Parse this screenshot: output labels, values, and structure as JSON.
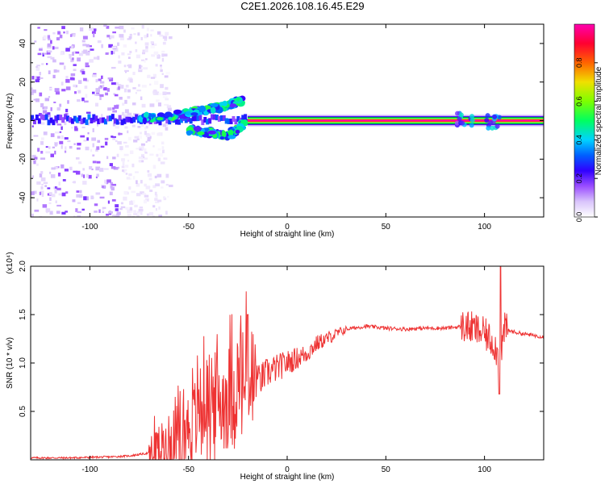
{
  "title": "C2E1.2026.108.16.45.E29",
  "chart_data": [
    {
      "type": "heatmap",
      "xlabel": "Height of straight line (km)",
      "ylabel": "Frequency (Hz)",
      "xlim": [
        -130,
        130
      ],
      "ylim": [
        -50,
        50
      ],
      "xticks": [
        -100,
        -50,
        0,
        50,
        100
      ],
      "yticks": [
        -40,
        -20,
        0,
        20,
        40
      ],
      "colorbar": {
        "label": "Normalized spectral amplitude",
        "range": [
          0,
          1
        ],
        "ticks": [
          "0.0",
          "0.2",
          "0.4",
          "0.6",
          "0.8"
        ],
        "colors": [
          "#ffffff",
          "#b78af5",
          "#7a14ff",
          "#0000ff",
          "#00c8ff",
          "#00ff00",
          "#c8ff00",
          "#ffaa00",
          "#ff0000",
          "#ff00aa"
        ]
      },
      "features": {
        "noise_region_x": [
          -130,
          -85
        ],
        "noise_amplitude": 0.15,
        "carrier_center_y": 0,
        "carrier_halfwidth_hz": 2,
        "carrier_strong_x": [
          -20,
          130
        ],
        "carrier_strong_amplitude": 1.0,
        "rising_branch": [
          [
            -75,
            1
          ],
          [
            -55,
            3
          ],
          [
            -40,
            6
          ],
          [
            -30,
            8
          ],
          [
            -22,
            11
          ]
        ],
        "falling_branch": [
          [
            -50,
            -5
          ],
          [
            -40,
            -6
          ],
          [
            -30,
            -8
          ],
          [
            -22,
            -2
          ]
        ],
        "disturbances_x": [
          90,
          105
        ]
      }
    },
    {
      "type": "line",
      "xlabel": "Height of straight line (km)",
      "ylabel": "SNR (10 * v/v)",
      "y_multiplier": "(x10⁴)",
      "xlim": [
        -130,
        130
      ],
      "ylim": [
        0,
        2.0
      ],
      "xticks": [
        -100,
        -50,
        0,
        50,
        100
      ],
      "yticks": [
        "0.5",
        "1.0",
        "1.5",
        "2.0"
      ],
      "color": "#ee3333",
      "x": [
        -130,
        -110,
        -90,
        -80,
        -70,
        -65,
        -60,
        -55,
        -50,
        -45,
        -40,
        -35,
        -30,
        -25,
        -20,
        -15,
        -10,
        -5,
        0,
        5,
        10,
        15,
        20,
        25,
        30,
        40,
        50,
        60,
        70,
        80,
        90,
        95,
        100,
        105,
        108,
        110,
        115,
        120,
        130
      ],
      "values": [
        0.02,
        0.02,
        0.03,
        0.04,
        0.07,
        0.12,
        0.18,
        0.25,
        0.35,
        0.5,
        0.65,
        0.6,
        0.65,
        0.8,
        0.75,
        0.8,
        0.9,
        0.95,
        1.0,
        1.05,
        1.1,
        1.2,
        1.25,
        1.3,
        1.35,
        1.38,
        1.36,
        1.35,
        1.36,
        1.36,
        1.38,
        1.35,
        1.3,
        1.2,
        1.0,
        1.35,
        1.32,
        1.3,
        1.27
      ]
    }
  ]
}
